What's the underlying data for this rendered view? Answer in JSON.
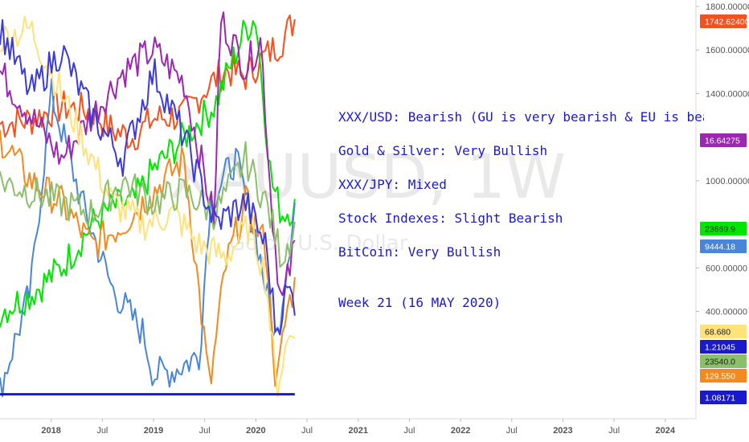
{
  "watermark": {
    "symbol": "XAUUSD, 1W",
    "subtitle": "Gold / U.S. Dollar"
  },
  "notes": [
    "XXX/USD: Bearish (GU is very bearish & EU is bearish)",
    "Gold & Silver: Very Bullish",
    "XXX/JPY: Mixed",
    "Stock Indexes:  Slight Bearish",
    "BitCoin: Very Bullish",
    "Week 21 (16 MAY 2020)"
  ],
  "chart_data": {
    "type": "line",
    "title": "",
    "xlabel": "",
    "ylabel": "",
    "ylim": [
      0,
      1800
    ],
    "y_ticks": [
      "1800.00000",
      "1600.00000",
      "1400.00000",
      "1000.00000",
      "600.00000",
      "400.00000"
    ],
    "x_ticks": [
      "2018",
      "Jul",
      "2019",
      "Jul",
      "2020",
      "Jul",
      "2021",
      "Jul",
      "2022",
      "Jul",
      "2023",
      "Jul",
      "2024"
    ],
    "grid": false,
    "last_value_labels": [
      {
        "text": "1742.62400",
        "color": "#f4511e"
      },
      {
        "text": "16.64275",
        "color": "#9c27b0"
      },
      {
        "text": "23669.9",
        "color": "#00e600"
      },
      {
        "text": "9444.18",
        "color": "#4a86d8"
      },
      {
        "text": "68.680",
        "color": "#ffe27a"
      },
      {
        "text": "1.21045",
        "color": "#1a1acc"
      },
      {
        "text": "23540.0",
        "color": "#8bbf6a"
      },
      {
        "text": "129.550",
        "color": "#f28a1e"
      },
      {
        "text": "1.08171",
        "color": "#1a1acc"
      }
    ],
    "series": [
      {
        "color": "#f4511e",
        "x": [
          2017.5,
          2017.8,
          2018.1,
          2018.4,
          2018.6,
          2018.8,
          2019.0,
          2019.3,
          2019.5,
          2019.7,
          2019.9,
          2020.1,
          2020.25,
          2020.38
        ],
        "y": [
          1260,
          1280,
          1340,
          1320,
          1230,
          1200,
          1285,
          1300,
          1420,
          1510,
          1480,
          1575,
          1640,
          1742
        ]
      },
      {
        "color": "#00e600",
        "x": [
          2017.5,
          2017.8,
          2018.1,
          2018.4,
          2018.6,
          2018.8,
          2019.0,
          2019.3,
          2019.6,
          2019.9,
          2020.0,
          2020.15,
          2020.25,
          2020.38
        ],
        "y": [
          400,
          480,
          600,
          800,
          880,
          900,
          1050,
          1200,
          1350,
          1700,
          1750,
          1000,
          850,
          880
        ]
      },
      {
        "color": "#4a86d8",
        "x": [
          2017.5,
          2017.8,
          2018.0,
          2018.3,
          2018.6,
          2018.9,
          2019.0,
          2019.2,
          2019.45,
          2019.55,
          2019.8,
          2020.0,
          2020.2,
          2020.38
        ],
        "y": [
          40,
          500,
          1400,
          900,
          500,
          300,
          110,
          130,
          200,
          900,
          1100,
          750,
          250,
          900
        ]
      },
      {
        "color": "#9c27b0",
        "x": [
          2017.5,
          2017.8,
          2018.1,
          2018.4,
          2018.7,
          2019.0,
          2019.3,
          2019.6,
          2019.65,
          2019.9,
          2020.05,
          2020.15,
          2020.25,
          2020.38
        ],
        "y": [
          1500,
          1300,
          1100,
          1300,
          1500,
          1600,
          1450,
          800,
          1750,
          1520,
          1650,
          900,
          420,
          700
        ]
      },
      {
        "color": "#f28a1e",
        "x": [
          2017.5,
          2017.8,
          2018.1,
          2018.4,
          2018.7,
          2019.0,
          2019.3,
          2019.55,
          2019.7,
          2019.9,
          2020.1,
          2020.2,
          2020.3,
          2020.38
        ],
        "y": [
          1200,
          1000,
          900,
          700,
          800,
          950,
          1100,
          40,
          600,
          900,
          700,
          40,
          400,
          520
        ]
      },
      {
        "color": "#ffe27a",
        "x": [
          2017.5,
          2017.8,
          2018.0,
          2018.3,
          2018.6,
          2018.9,
          2019.2,
          2019.45,
          2019.7,
          2019.95,
          2020.1,
          2020.2,
          2020.3,
          2020.38
        ],
        "y": [
          1650,
          1700,
          1500,
          1200,
          900,
          800,
          850,
          700,
          650,
          800,
          550,
          40,
          250,
          350
        ]
      },
      {
        "color": "#8bbf6a",
        "x": [
          2017.5,
          2017.8,
          2018.1,
          2018.4,
          2018.7,
          2019.0,
          2019.3,
          2019.6,
          2019.9,
          2020.1,
          2020.25,
          2020.38
        ],
        "y": [
          1000,
          950,
          900,
          850,
          1000,
          900,
          950,
          850,
          1100,
          900,
          650,
          780
        ]
      },
      {
        "color": "#3b3bdb",
        "x": [
          2017.5,
          2017.8,
          2018.1,
          2018.4,
          2018.7,
          2019.0,
          2019.3,
          2019.6,
          2019.9,
          2020.1,
          2020.2,
          2020.3,
          2020.38
        ],
        "y": [
          1700,
          1400,
          1600,
          1300,
          1100,
          1500,
          1200,
          800,
          900,
          700,
          300,
          500,
          450
        ]
      },
      {
        "color": "#1a1acc",
        "x": [
          2017.5,
          2020.38
        ],
        "y": [
          20,
          20
        ]
      }
    ]
  }
}
